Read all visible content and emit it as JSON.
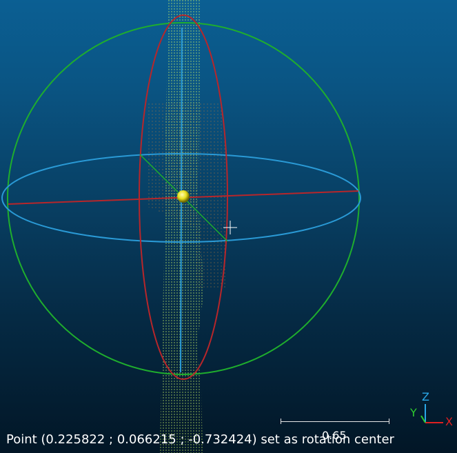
{
  "status_message": "Point (0.225822 ; 0.066215 ; -0.732424) set as rotation center",
  "scale_bar": {
    "label": "0.65"
  },
  "axes": {
    "x_label": "X",
    "y_label": "Y",
    "z_label": "Z"
  },
  "colors": {
    "background_top": "#0b5f93",
    "background_bottom": "#021626",
    "point_cloud": "#c8f064",
    "sphere_outline": "#1fae2d",
    "equator_ring": "#2a9ad6",
    "vertical_ring": "#b8262a",
    "axis_x": "#e02020",
    "axis_y": "#2ecc2e",
    "axis_z": "#2aa8e8",
    "rotation_center": "#e8e020"
  }
}
